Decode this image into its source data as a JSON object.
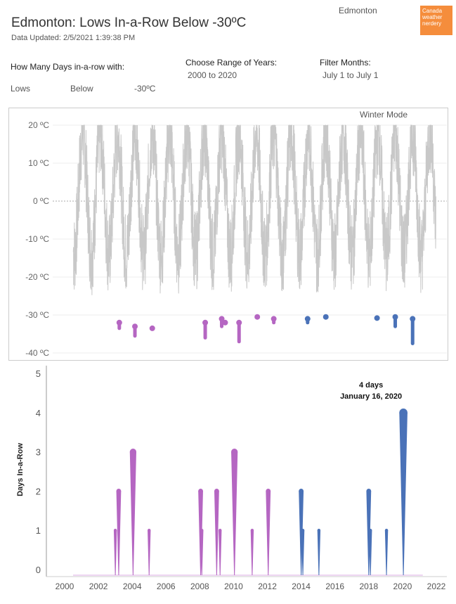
{
  "header": {
    "title": "Edmonton: Lows In-a-Row Below -30ºC",
    "updated": "Data Updated: 2/5/2021 1:39:38 PM",
    "city": "Edmonton",
    "logo_text": "Canada weather nerdery"
  },
  "controls": {
    "days_label": "How Many Days in-a-row with:",
    "measure": "Lows",
    "comparison": "Below",
    "threshold": "-30ºC",
    "range_label": "Choose Range of Years:",
    "range_value": "2000 to 2020",
    "months_label": "Filter Months:",
    "months_value": "July 1 to July 1"
  },
  "top_chart": {
    "mode_label": "Winter Mode",
    "ticks": [
      "20 ºC",
      "10 ºC",
      "0 ºC",
      "-10 ºC",
      "-20 ºC",
      "-30 ºC",
      "-40 ºC"
    ]
  },
  "colors": {
    "temp_line": "#c8c8c8",
    "purple": "#b566c2",
    "blue": "#4a72b8"
  },
  "chart_data": [
    {
      "type": "line",
      "title": "",
      "ylabel": "",
      "ylim": [
        -42,
        23
      ],
      "xlim": [
        2000.5,
        2021
      ],
      "series": [
        {
          "name": "Daily low temperature",
          "values_description": "seasonal daily lows 2000-2021"
        }
      ],
      "events": [
        {
          "x": 2003.15,
          "y": [
            -32,
            -33.5
          ]
        },
        {
          "x": 2004.05,
          "y": [
            -33,
            -35.5
          ]
        },
        {
          "x": 2005.05,
          "y": [
            -33.5
          ]
        },
        {
          "x": 2008.1,
          "y": [
            -32,
            -36
          ]
        },
        {
          "x": 2009.05,
          "y": [
            -31,
            -33
          ]
        },
        {
          "x": 2009.25,
          "y": [
            -32
          ]
        },
        {
          "x": 2010.05,
          "y": [
            -32,
            -37
          ]
        },
        {
          "x": 2011.1,
          "y": [
            -30.5
          ]
        },
        {
          "x": 2012.05,
          "y": [
            -31,
            -32
          ]
        },
        {
          "x": 2014.0,
          "y": [
            -31,
            -32
          ]
        },
        {
          "x": 2015.05,
          "y": [
            -30.5
          ]
        },
        {
          "x": 2018.0,
          "y": [
            -30.8
          ]
        },
        {
          "x": 2019.05,
          "y": [
            -30.5,
            -33
          ]
        },
        {
          "x": 2020.05,
          "y": [
            -31,
            -37.5
          ]
        }
      ]
    },
    {
      "type": "area",
      "ylabel": "Days In-a-Row",
      "ylim": [
        0,
        5
      ],
      "xlim": [
        1999.3,
        2022.6
      ],
      "x_ticks": [
        "2000",
        "2002",
        "2004",
        "2006",
        "2008",
        "2010",
        "2012",
        "2014",
        "2016",
        "2018",
        "2020",
        "2022"
      ],
      "y_ticks": [
        "0",
        "1",
        "2",
        "3",
        "4",
        "5"
      ],
      "spikes": [
        {
          "x": 2003.0,
          "value": 1
        },
        {
          "x": 2003.2,
          "value": 2
        },
        {
          "x": 2004.05,
          "value": 3
        },
        {
          "x": 2005.0,
          "value": 1
        },
        {
          "x": 2008.05,
          "value": 2
        },
        {
          "x": 2008.12,
          "value": 1
        },
        {
          "x": 2009.0,
          "value": 2
        },
        {
          "x": 2009.2,
          "value": 1
        },
        {
          "x": 2010.05,
          "value": 3
        },
        {
          "x": 2011.1,
          "value": 1
        },
        {
          "x": 2012.05,
          "value": 2
        },
        {
          "x": 2014.0,
          "value": 2
        },
        {
          "x": 2014.1,
          "value": 1
        },
        {
          "x": 2015.05,
          "value": 1
        },
        {
          "x": 2018.0,
          "value": 2
        },
        {
          "x": 2018.1,
          "value": 1
        },
        {
          "x": 2019.05,
          "value": 1
        },
        {
          "x": 2020.05,
          "value": 4
        }
      ],
      "annotation": {
        "line1": "4 days",
        "line2": "January 16, 2020"
      }
    }
  ]
}
